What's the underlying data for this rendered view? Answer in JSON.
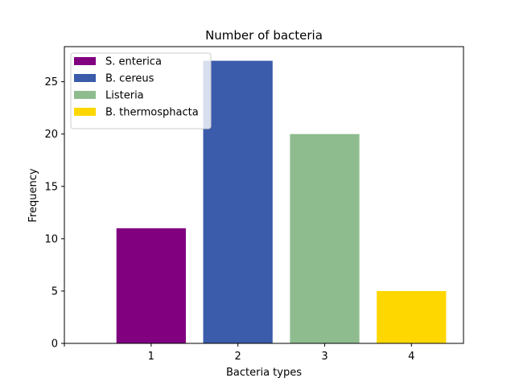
{
  "chart_data": {
    "type": "bar",
    "title": "Number of bacteria",
    "xlabel": "Bacteria types",
    "ylabel": "Frequency",
    "categories": [
      "1",
      "2",
      "3",
      "4"
    ],
    "x": [
      1,
      2,
      3,
      4
    ],
    "values": [
      11,
      27,
      20,
      5
    ],
    "series": [
      {
        "name": "S. enterica",
        "x": 1,
        "value": 11,
        "color": "#800080"
      },
      {
        "name": "B. cereus",
        "x": 2,
        "value": 27,
        "color": "#3b5bab"
      },
      {
        "name": "Listeria",
        "x": 3,
        "value": 20,
        "color": "#8fbc8f"
      },
      {
        "name": "B. thermosphacta",
        "x": 4,
        "value": 5,
        "color": "#ffd700"
      }
    ],
    "xlim": [
      0,
      4.6
    ],
    "ylim": [
      0,
      28.35
    ],
    "yticks": [
      0,
      5,
      10,
      15,
      20,
      25
    ],
    "xticks": [
      1,
      2,
      3,
      4
    ],
    "grid": false,
    "legend_position": "upper-left"
  }
}
